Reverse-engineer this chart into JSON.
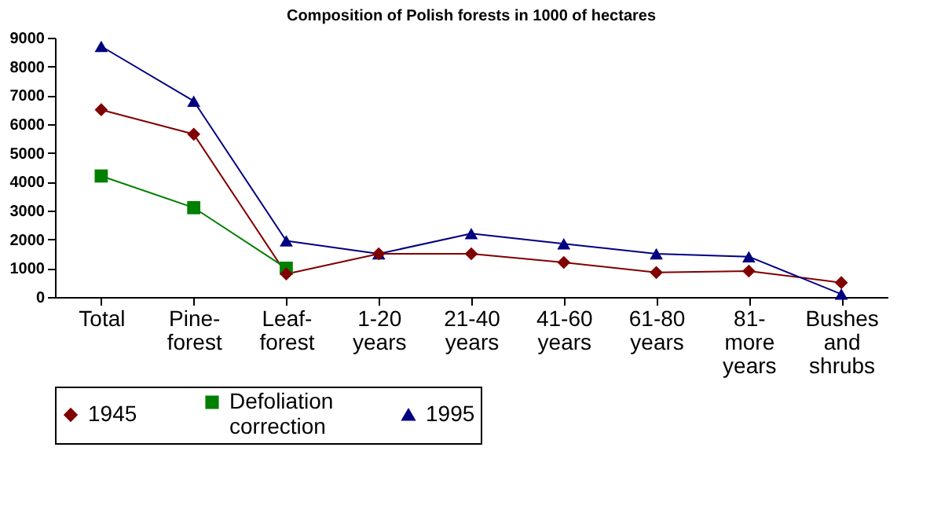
{
  "chart_data": {
    "type": "line",
    "title": "Composition of Polish forests in 1000 of hectares",
    "categories": [
      "Total",
      "Pine-\nforest",
      "Leaf-\nforest",
      "1-20\nyears",
      "21-40\nyears",
      "41-60\nyears",
      "61-80\nyears",
      "81-\nmore\nyears",
      "Bushes\nand\nshrubs"
    ],
    "series": [
      {
        "name": "1945",
        "color": "#800000",
        "marker": "diamond",
        "values": [
          6500,
          5650,
          800,
          1500,
          1500,
          1200,
          850,
          900,
          500
        ]
      },
      {
        "name": "Defoliation\ncorrection",
        "color": "#008000",
        "marker": "square",
        "values": [
          4200,
          3100,
          1000,
          null,
          null,
          null,
          null,
          null,
          null
        ]
      },
      {
        "name": "1995",
        "color": "#000080",
        "marker": "triangle",
        "values": [
          8700,
          6800,
          1950,
          1500,
          2200,
          1850,
          1500,
          1400,
          100
        ]
      }
    ],
    "ylim": [
      0,
      9000
    ],
    "yticks": [
      0,
      1000,
      2000,
      3000,
      4000,
      5000,
      6000,
      7000,
      8000,
      9000
    ],
    "grid": false,
    "legend": "bottom",
    "line_style": "solid"
  }
}
